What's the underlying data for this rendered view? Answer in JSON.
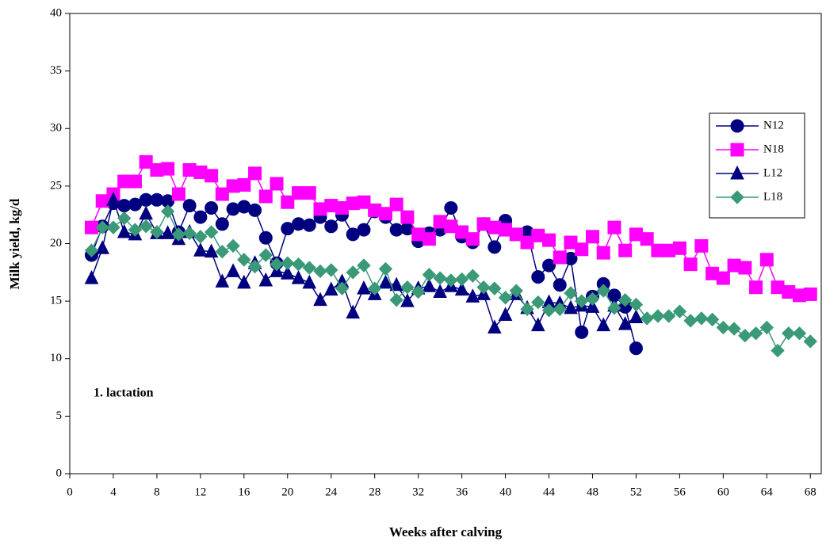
{
  "chart_data": {
    "type": "line",
    "xlabel": "Weeks after calving",
    "ylabel": "Milk yield, kg/d",
    "annotation": "1. lactation",
    "legend": "upper right",
    "xlim": [
      0,
      69
    ],
    "ylim": [
      0,
      40
    ],
    "xticks": [
      0,
      4,
      8,
      12,
      16,
      20,
      24,
      28,
      32,
      36,
      40,
      44,
      48,
      52,
      56,
      60,
      64,
      68
    ],
    "yticks": [
      0,
      5,
      10,
      15,
      20,
      25,
      30,
      35,
      40
    ],
    "x": [
      2,
      3,
      4,
      5,
      6,
      7,
      8,
      9,
      10,
      11,
      12,
      13,
      14,
      15,
      16,
      17,
      18,
      19,
      20,
      21,
      22,
      23,
      24,
      25,
      26,
      27,
      28,
      29,
      30,
      31,
      32,
      33,
      34,
      35,
      36,
      37,
      38,
      39,
      40,
      41,
      42,
      43,
      44,
      45,
      46,
      47,
      48,
      49,
      50,
      51,
      52,
      53,
      54,
      55,
      56,
      57,
      58,
      59,
      60,
      61,
      62,
      63,
      64,
      65,
      66,
      67,
      68
    ],
    "series": [
      {
        "name": "N12",
        "color": "#000080",
        "marker": "circle",
        "values": [
          19.0,
          21.5,
          23.5,
          23.3,
          23.4,
          23.8,
          23.8,
          23.7,
          21.0,
          23.3,
          22.3,
          23.1,
          21.7,
          23.0,
          23.2,
          22.9,
          20.5,
          18.3,
          21.3,
          21.7,
          21.6,
          22.3,
          21.5,
          22.5,
          20.8,
          21.2,
          22.8,
          22.3,
          21.2,
          21.3,
          20.2,
          20.9,
          21.2,
          23.1,
          20.6,
          20.1,
          21.7,
          19.7,
          22.0,
          20.8,
          21.0,
          17.1,
          18.1,
          16.4,
          18.7,
          12.3,
          15.4,
          16.5,
          15.5,
          14.5,
          10.9,
          null,
          null,
          null,
          null,
          null,
          null,
          null,
          null,
          null,
          null,
          null,
          null,
          null,
          null,
          null,
          null
        ]
      },
      {
        "name": "N18",
        "color": "#ff00ff",
        "marker": "square",
        "values": [
          21.4,
          23.7,
          24.3,
          25.4,
          25.4,
          27.1,
          26.4,
          26.5,
          24.3,
          26.4,
          26.2,
          25.9,
          24.3,
          25.0,
          25.1,
          26.1,
          24.1,
          25.2,
          23.6,
          24.4,
          24.4,
          23.0,
          23.3,
          23.1,
          23.5,
          23.6,
          22.9,
          22.6,
          23.4,
          22.3,
          20.8,
          20.4,
          21.9,
          21.5,
          21.0,
          20.4,
          21.7,
          21.4,
          21.2,
          20.8,
          20.1,
          20.7,
          20.3,
          18.8,
          20.1,
          19.5,
          20.6,
          19.2,
          21.4,
          19.4,
          20.8,
          20.4,
          19.4,
          19.4,
          19.6,
          18.2,
          19.8,
          17.4,
          17.0,
          18.1,
          17.9,
          16.2,
          18.6,
          16.2,
          15.8,
          15.5,
          15.6
        ]
      },
      {
        "name": "L12",
        "color": "#000080",
        "marker": "triangle",
        "values": [
          17.0,
          19.6,
          23.8,
          21.0,
          20.8,
          22.6,
          20.9,
          20.9,
          20.4,
          21.0,
          19.4,
          19.3,
          16.7,
          17.6,
          16.6,
          18.3,
          16.8,
          17.6,
          17.4,
          17.0,
          16.6,
          15.1,
          16.0,
          16.7,
          14.0,
          16.1,
          15.6,
          16.6,
          16.4,
          15.0,
          16.1,
          16.3,
          15.8,
          16.3,
          16.0,
          15.4,
          15.6,
          12.7,
          13.8,
          15.6,
          14.4,
          12.9,
          14.9,
          14.8,
          14.4,
          14.6,
          14.5,
          12.9,
          14.6,
          13.0,
          13.6,
          null,
          null,
          null,
          null,
          null,
          null,
          null,
          null,
          null,
          null,
          null,
          null,
          null,
          null,
          null,
          null
        ]
      },
      {
        "name": "L18",
        "color": "#3a9a78",
        "marker": "diamond",
        "values": [
          19.4,
          21.4,
          21.4,
          22.2,
          21.2,
          21.5,
          21.0,
          22.8,
          20.8,
          20.9,
          20.6,
          21.0,
          19.3,
          19.8,
          18.6,
          18.0,
          19.0,
          18.2,
          18.3,
          18.2,
          17.9,
          17.6,
          17.7,
          16.1,
          17.5,
          18.1,
          16.1,
          17.8,
          15.1,
          16.2,
          15.8,
          17.3,
          17.0,
          16.8,
          16.9,
          17.2,
          16.2,
          16.1,
          15.3,
          15.9,
          14.3,
          14.9,
          14.2,
          14.3,
          15.7,
          15.0,
          15.2,
          15.9,
          14.4,
          15.1,
          14.7,
          13.5,
          13.7,
          13.7,
          14.1,
          13.3,
          13.5,
          13.4,
          12.7,
          12.6,
          12.0,
          12.2,
          12.7,
          10.7,
          12.2,
          12.2,
          11.5
        ]
      }
    ]
  }
}
